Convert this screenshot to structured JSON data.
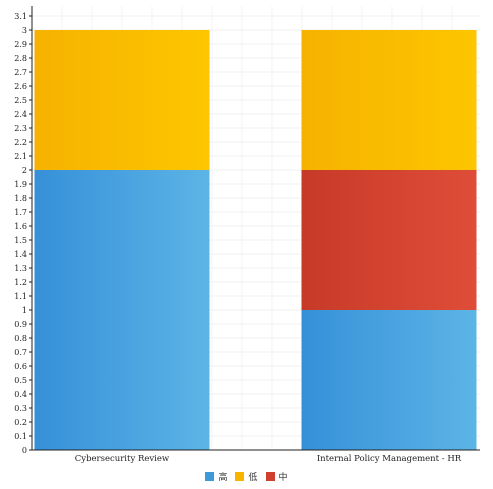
{
  "chart_data": {
    "type": "bar",
    "stacked": true,
    "categories": [
      "Cybersecurity Review",
      "Internal Policy Management - HR"
    ],
    "series": [
      {
        "name": "高",
        "values": [
          2,
          1
        ],
        "color": "#3e9ad9"
      },
      {
        "name": "低",
        "values": [
          1,
          1
        ],
        "color": "#f7b500"
      },
      {
        "name": "中",
        "values": [
          0,
          1
        ],
        "color": "#d0402e"
      }
    ],
    "stack_order": [
      "高",
      "中",
      "低"
    ],
    "ylim": [
      0,
      3.1
    ],
    "y_ticks": [
      "0",
      "0.1",
      "0.2",
      "0.3",
      "0.4",
      "0.5",
      "0.6",
      "0.7",
      "0.8",
      "0.9",
      "1",
      "1.1",
      "1.2",
      "1.3",
      "1.4",
      "1.5",
      "1.6",
      "1.7",
      "1.8",
      "1.9",
      "2",
      "2.1",
      "2.2",
      "2.3",
      "2.4",
      "2.5",
      "2.6",
      "2.7",
      "2.8",
      "2.9",
      "3",
      "3.1"
    ],
    "grid": true,
    "legend_position": "bottom-center",
    "xlabel": "",
    "ylabel": "",
    "title": ""
  }
}
